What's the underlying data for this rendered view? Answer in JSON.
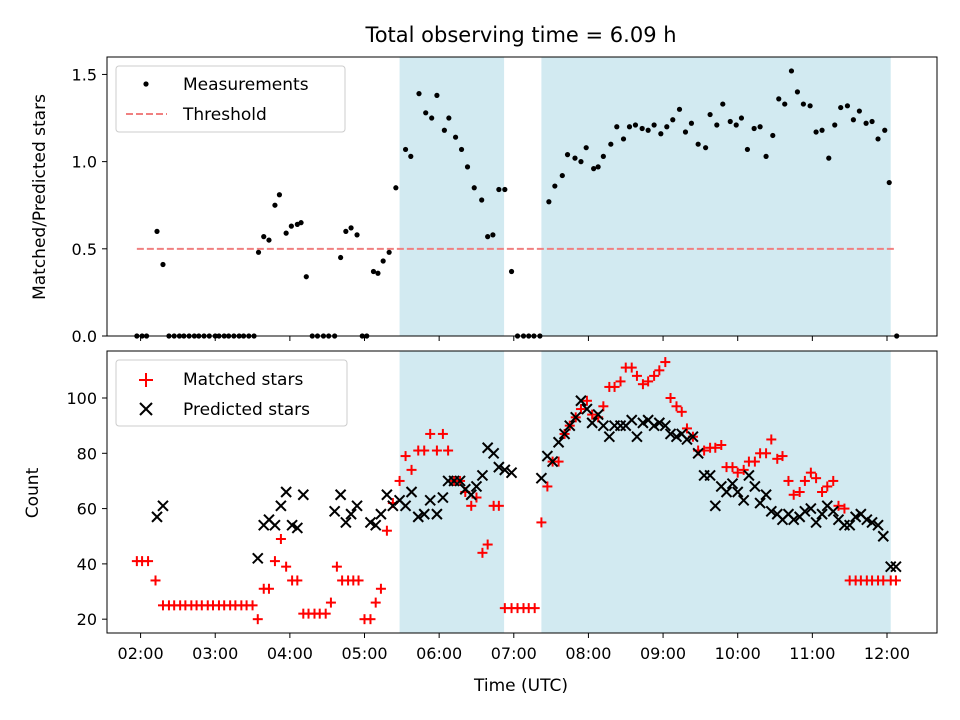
{
  "figure": {
    "title": "Total observing time = 6.09 h",
    "xlabel": "Time (UTC)",
    "x_ticks": [
      "02:00",
      "03:00",
      "04:00",
      "05:00",
      "06:00",
      "07:00",
      "08:00",
      "09:00",
      "10:00",
      "11:00",
      "12:00"
    ]
  },
  "chart_data": [
    {
      "type": "scatter",
      "panel": "top",
      "ylabel": "Matched/Predicted stars",
      "xlim_hours": [
        1.55,
        12.67
      ],
      "ylim": [
        0,
        1.6
      ],
      "y_ticks": [
        "0.0",
        "0.5",
        "1.0",
        "1.5"
      ],
      "legend_position": "upper-left",
      "legend": [
        "Measurements",
        "Threshold"
      ],
      "threshold": 0.5,
      "threshold_color": "#f08080",
      "shaded_intervals_hours": [
        [
          5.47,
          6.87
        ],
        [
          7.37,
          12.05
        ]
      ],
      "shade_color": "#add8e6",
      "series": [
        {
          "name": "Measurements",
          "color": "#000000",
          "marker": "dot",
          "x": [
            1.95,
            2.02,
            2.08,
            2.22,
            2.3,
            2.38,
            2.45,
            2.52,
            2.58,
            2.65,
            2.72,
            2.78,
            2.85,
            2.92,
            3.0,
            3.05,
            3.12,
            3.18,
            3.25,
            3.32,
            3.38,
            3.45,
            3.52,
            3.58,
            3.65,
            3.72,
            3.8,
            3.86,
            3.95,
            4.02,
            4.1,
            4.15,
            4.22,
            4.3,
            4.37,
            4.45,
            4.52,
            4.6,
            4.68,
            4.75,
            4.82,
            4.9,
            4.97,
            5.03,
            5.12,
            5.18,
            5.25,
            5.33,
            5.42,
            5.55,
            5.62,
            5.73,
            5.82,
            5.9,
            5.97,
            6.07,
            6.13,
            6.22,
            6.3,
            6.38,
            6.47,
            6.57,
            6.65,
            6.72,
            6.8,
            6.88,
            6.97,
            7.05,
            7.13,
            7.2,
            7.27,
            7.35,
            7.47,
            7.55,
            7.65,
            7.72,
            7.82,
            7.9,
            7.97,
            8.07,
            8.13,
            8.2,
            8.3,
            8.38,
            8.47,
            8.55,
            8.63,
            8.72,
            8.8,
            8.88,
            8.97,
            9.05,
            9.13,
            9.22,
            9.3,
            9.38,
            9.47,
            9.57,
            9.63,
            9.72,
            9.8,
            9.9,
            9.98,
            10.05,
            10.13,
            10.22,
            10.3,
            10.38,
            10.47,
            10.55,
            10.63,
            10.72,
            10.8,
            10.88,
            10.97,
            11.05,
            11.13,
            11.22,
            11.3,
            11.38,
            11.47,
            11.55,
            11.63,
            11.72,
            11.8,
            11.88,
            11.97,
            12.03,
            12.13
          ],
          "y": [
            0.0,
            0.0,
            0.0,
            0.6,
            0.41,
            0.0,
            0.0,
            0.0,
            0.0,
            0.0,
            0.0,
            0.0,
            0.0,
            0.0,
            0.0,
            0.0,
            0.0,
            0.0,
            0.0,
            0.0,
            0.0,
            0.0,
            0.0,
            0.48,
            0.57,
            0.55,
            0.75,
            0.81,
            0.59,
            0.63,
            0.64,
            0.65,
            0.34,
            0.0,
            0.0,
            0.0,
            0.0,
            0.0,
            0.45,
            0.6,
            0.62,
            0.58,
            0.0,
            0.0,
            0.37,
            0.36,
            0.43,
            0.48,
            0.85,
            1.07,
            1.03,
            1.39,
            1.28,
            1.25,
            1.38,
            1.18,
            1.25,
            1.14,
            1.07,
            0.97,
            0.85,
            0.78,
            0.57,
            0.58,
            0.84,
            0.84,
            0.37,
            0.0,
            0.0,
            0.0,
            0.0,
            0.0,
            0.77,
            0.86,
            0.92,
            1.04,
            1.02,
            1.0,
            1.08,
            0.96,
            0.97,
            1.03,
            1.1,
            1.2,
            1.13,
            1.2,
            1.21,
            1.19,
            1.18,
            1.21,
            1.16,
            1.2,
            1.24,
            1.3,
            1.17,
            1.22,
            1.1,
            1.08,
            1.27,
            1.21,
            1.33,
            1.23,
            1.21,
            1.25,
            1.07,
            1.19,
            1.2,
            1.03,
            1.15,
            1.36,
            1.33,
            1.52,
            1.4,
            1.33,
            1.32,
            1.17,
            1.18,
            1.02,
            1.21,
            1.31,
            1.32,
            1.24,
            1.29,
            1.22,
            1.23,
            1.13,
            1.18,
            0.88,
            0.0
          ]
        },
        {
          "name": "Threshold",
          "color": "#f08080",
          "style": "dashed",
          "x": [
            1.95,
            12.12
          ],
          "y": [
            0.5,
            0.5
          ]
        }
      ]
    },
    {
      "type": "scatter",
      "panel": "bottom",
      "ylabel": "Count",
      "xlim_hours": [
        1.55,
        12.67
      ],
      "ylim": [
        15,
        117
      ],
      "y_ticks": [
        "20",
        "40",
        "60",
        "80",
        "100"
      ],
      "legend_position": "upper-left",
      "legend": [
        "Matched stars",
        "Predicted stars"
      ],
      "shaded_intervals_hours": [
        [
          5.47,
          6.87
        ],
        [
          7.37,
          12.05
        ]
      ],
      "shade_color": "#add8e6",
      "series": [
        {
          "name": "Matched stars",
          "color": "#ff0000",
          "marker": "plus",
          "x": [
            1.95,
            2.02,
            2.1,
            2.2,
            2.3,
            2.38,
            2.45,
            2.53,
            2.6,
            2.68,
            2.75,
            2.82,
            2.9,
            2.97,
            3.05,
            3.12,
            3.2,
            3.27,
            3.35,
            3.42,
            3.5,
            3.57,
            3.65,
            3.72,
            3.8,
            3.88,
            3.95,
            4.03,
            4.1,
            4.18,
            4.25,
            4.33,
            4.4,
            4.48,
            4.55,
            4.63,
            4.7,
            4.78,
            4.85,
            4.92,
            5.0,
            5.08,
            5.15,
            5.22,
            5.3,
            5.38,
            5.47,
            5.55,
            5.63,
            5.72,
            5.8,
            5.88,
            5.97,
            6.05,
            6.12,
            6.2,
            6.28,
            6.35,
            6.43,
            6.5,
            6.58,
            6.65,
            6.73,
            6.8,
            6.88,
            6.97,
            7.05,
            7.13,
            7.2,
            7.28,
            7.37,
            7.45,
            7.52,
            7.6,
            7.68,
            7.75,
            7.83,
            7.9,
            7.98,
            8.05,
            8.13,
            8.2,
            8.28,
            8.35,
            8.43,
            8.5,
            8.58,
            8.65,
            8.73,
            8.8,
            8.88,
            8.95,
            9.03,
            9.1,
            9.18,
            9.25,
            9.32,
            9.4,
            9.47,
            9.55,
            9.63,
            9.7,
            9.78,
            9.85,
            9.93,
            10.0,
            10.08,
            10.15,
            10.23,
            10.3,
            10.38,
            10.45,
            10.53,
            10.6,
            10.68,
            10.75,
            10.83,
            10.9,
            10.98,
            11.05,
            11.13,
            11.2,
            11.28,
            11.35,
            11.43,
            11.5,
            11.58,
            11.65,
            11.73,
            11.8,
            11.88,
            11.95,
            12.05,
            12.12
          ],
          "y": [
            41,
            41,
            41,
            34,
            25,
            25,
            25,
            25,
            25,
            25,
            25,
            25,
            25,
            25,
            25,
            25,
            25,
            25,
            25,
            25,
            25,
            20,
            31,
            31,
            41,
            49,
            39,
            34,
            34,
            22,
            22,
            22,
            22,
            22,
            26,
            39,
            34,
            34,
            34,
            34,
            20,
            20,
            26,
            31,
            52,
            62,
            70,
            79,
            74,
            81,
            81,
            87,
            81,
            87,
            81,
            70,
            70,
            66,
            61,
            64,
            44,
            47,
            61,
            61,
            24,
            24,
            24,
            24,
            24,
            24,
            55,
            68,
            77,
            77,
            87,
            90,
            93,
            96,
            99,
            94,
            93,
            97,
            104,
            104,
            106,
            111,
            111,
            108,
            105,
            106,
            108,
            110,
            113,
            100,
            97,
            95,
            89,
            86,
            81,
            81,
            82,
            82,
            83,
            75,
            75,
            73,
            74,
            77,
            77,
            80,
            80,
            85,
            78,
            79,
            70,
            65,
            66,
            70,
            73,
            71,
            66,
            68,
            70,
            61,
            60,
            34,
            34,
            34,
            34,
            34,
            34,
            34,
            34,
            34
          ],
          "note": ""
        },
        {
          "name": "Predicted stars",
          "color": "#000000",
          "marker": "x",
          "x": [
            2.22,
            2.3,
            3.57,
            3.65,
            3.72,
            3.8,
            3.88,
            3.95,
            4.03,
            4.1,
            4.18,
            4.6,
            4.68,
            4.75,
            4.82,
            4.9,
            5.08,
            5.15,
            5.22,
            5.3,
            5.38,
            5.47,
            5.55,
            5.63,
            5.72,
            5.8,
            5.88,
            5.97,
            6.05,
            6.12,
            6.2,
            6.28,
            6.35,
            6.43,
            6.5,
            6.58,
            6.65,
            6.73,
            6.8,
            6.88,
            6.97,
            7.37,
            7.45,
            7.52,
            7.6,
            7.68,
            7.75,
            7.83,
            7.9,
            7.98,
            8.05,
            8.13,
            8.2,
            8.28,
            8.35,
            8.43,
            8.5,
            8.58,
            8.65,
            8.73,
            8.8,
            8.88,
            8.95,
            9.03,
            9.1,
            9.18,
            9.25,
            9.32,
            9.4,
            9.47,
            9.55,
            9.63,
            9.7,
            9.78,
            9.85,
            9.93,
            10.0,
            10.08,
            10.15,
            10.23,
            10.3,
            10.38,
            10.45,
            10.53,
            10.6,
            10.68,
            10.75,
            10.83,
            10.9,
            10.98,
            11.05,
            11.13,
            11.2,
            11.28,
            11.35,
            11.43,
            11.5,
            11.58,
            11.65,
            11.73,
            11.8,
            11.88,
            11.95,
            12.05,
            12.12
          ],
          "y": [
            57,
            61,
            42,
            54,
            56,
            54,
            61,
            66,
            54,
            53,
            65,
            59,
            65,
            55,
            58,
            61,
            55,
            54,
            58,
            65,
            61,
            63,
            61,
            66,
            57,
            58,
            63,
            58,
            64,
            70,
            70,
            70,
            67,
            65,
            68,
            72,
            82,
            80,
            75,
            74,
            73,
            71,
            79,
            77,
            84,
            87,
            90,
            93,
            99,
            96,
            91,
            94,
            90,
            86,
            90,
            90,
            90,
            92,
            86,
            91,
            92,
            90,
            91,
            90,
            87,
            86,
            87,
            85,
            86,
            80,
            72,
            72,
            61,
            68,
            66,
            69,
            66,
            63,
            72,
            68,
            62,
            65,
            59,
            58,
            56,
            58,
            56,
            57,
            59,
            60,
            55,
            58,
            61,
            59,
            56,
            54,
            54,
            57,
            58,
            56,
            55,
            54,
            50,
            39,
            39
          ]
        }
      ]
    }
  ]
}
